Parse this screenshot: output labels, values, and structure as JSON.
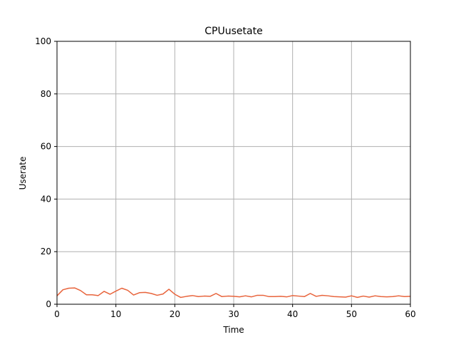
{
  "chart_data": {
    "type": "line",
    "title": "CPUusetate",
    "xlabel": "Time",
    "ylabel": "Userate",
    "xlim": [
      0,
      60
    ],
    "ylim": [
      0,
      100
    ],
    "xticks": [
      0,
      10,
      20,
      30,
      40,
      50,
      60
    ],
    "yticks": [
      0,
      20,
      40,
      60,
      80,
      100
    ],
    "grid": true,
    "legend": "none",
    "series": [
      {
        "color": "#e8643c",
        "x": [
          0,
          1,
          2,
          3,
          4,
          5,
          6,
          7,
          8,
          9,
          10,
          11,
          12,
          13,
          14,
          15,
          16,
          17,
          18,
          19,
          20,
          21,
          22,
          23,
          24,
          25,
          26,
          27,
          28,
          29,
          30,
          31,
          32,
          33,
          34,
          35,
          36,
          37,
          38,
          39,
          40,
          41,
          42,
          43,
          44,
          45,
          46,
          47,
          48,
          49,
          50,
          51,
          52,
          53,
          54,
          55,
          56,
          57,
          58,
          59,
          60
        ],
        "y": [
          3.2,
          5.5,
          6.1,
          6.2,
          5.2,
          3.6,
          3.6,
          3.3,
          4.9,
          3.8,
          5.0,
          6.1,
          5.3,
          3.5,
          4.4,
          4.5,
          4.1,
          3.4,
          3.9,
          5.7,
          3.8,
          2.6,
          3.0,
          3.3,
          2.9,
          3.1,
          3.0,
          4.1,
          2.9,
          3.1,
          3.0,
          2.8,
          3.2,
          2.8,
          3.4,
          3.4,
          2.9,
          2.9,
          3.0,
          2.8,
          3.3,
          3.1,
          2.9,
          4.1,
          3.0,
          3.4,
          3.2,
          2.9,
          2.8,
          2.7,
          3.2,
          2.6,
          3.1,
          2.7,
          3.2,
          2.9,
          2.8,
          2.9,
          3.2,
          2.9,
          3.0
        ]
      }
    ]
  }
}
